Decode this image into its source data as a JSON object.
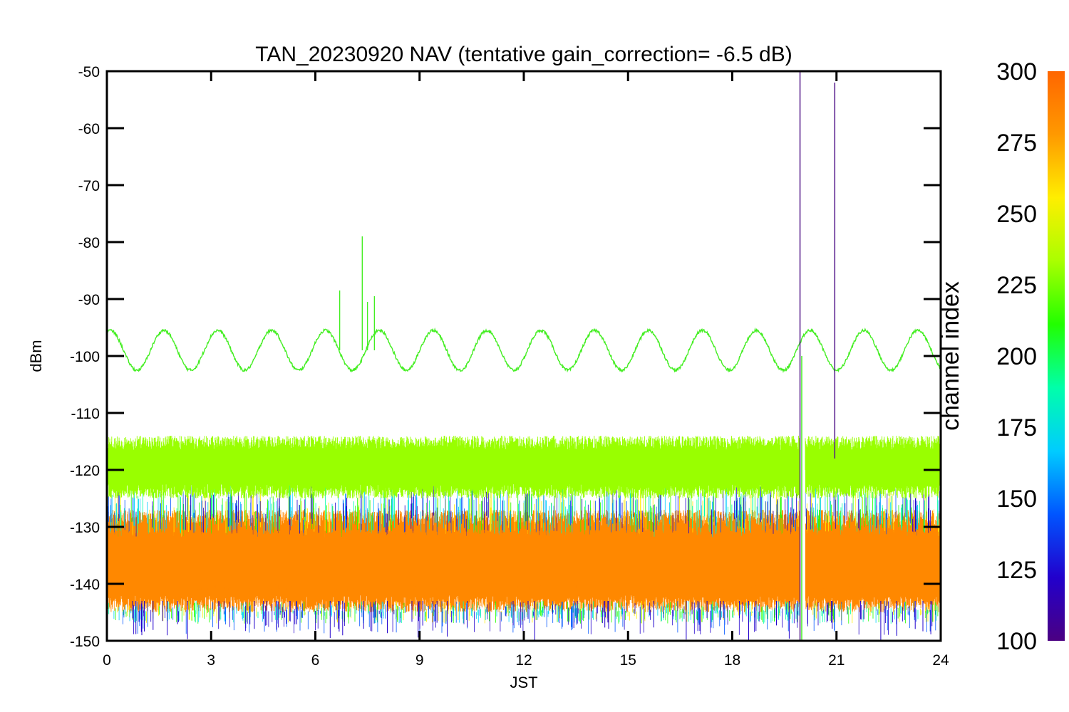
{
  "chart_data": {
    "type": "line",
    "title": "TAN_20230920 NAV (tentative gain_correction= -6.5 dB)",
    "xlabel": "JST",
    "ylabel": "dBm",
    "xlim": [
      0,
      24
    ],
    "ylim": [
      -150,
      -50
    ],
    "x_ticks": [
      0,
      3,
      6,
      9,
      12,
      15,
      18,
      21,
      24
    ],
    "y_ticks": [
      -50,
      -60,
      -70,
      -80,
      -90,
      -100,
      -110,
      -120,
      -130,
      -140,
      -150
    ],
    "grid": false,
    "colorbar": {
      "label": "channel index",
      "range": [
        100,
        300
      ],
      "ticks": [
        100,
        125,
        150,
        175,
        200,
        225,
        250,
        275,
        300
      ],
      "colormap": [
        "#4b0082",
        "#2200cc",
        "#0055ff",
        "#00ccff",
        "#00ffaa",
        "#22ff00",
        "#aaff00",
        "#ffee00",
        "#ff9900",
        "#ff6600"
      ]
    },
    "series": [
      {
        "channel": 245,
        "color": "#44ee22",
        "description_values": {
          "mean": -99,
          "amplitude": 3.5,
          "period_hours": 1.55,
          "spikes": [
            {
              "x": 6.7,
              "y": -88.5
            },
            {
              "x": 7.35,
              "y": -79
            },
            {
              "x": 7.5,
              "y": -90.5
            },
            {
              "x": 7.7,
              "y": -89.5
            }
          ]
        }
      },
      {
        "channel": 260,
        "color": "#99ff00",
        "description_values": {
          "mean": -119,
          "range": [
            -125,
            -114
          ]
        }
      },
      {
        "channel": 290,
        "color": "#ff8800",
        "description_values": {
          "mean": -136,
          "range": [
            -145,
            -127
          ]
        }
      }
    ],
    "vertical_lines": [
      {
        "x": 19.95,
        "y_range": [
          -150,
          -50
        ],
        "color": "#551a8b"
      },
      {
        "x": 20.0,
        "y_range": [
          -150,
          -100
        ],
        "color": "#44ee22"
      },
      {
        "x": 20.95,
        "y_range": [
          -118,
          -52
        ],
        "color": "#551a8b"
      }
    ],
    "gaps": [
      {
        "x_range": [
          19.95,
          20.1
        ]
      }
    ]
  }
}
